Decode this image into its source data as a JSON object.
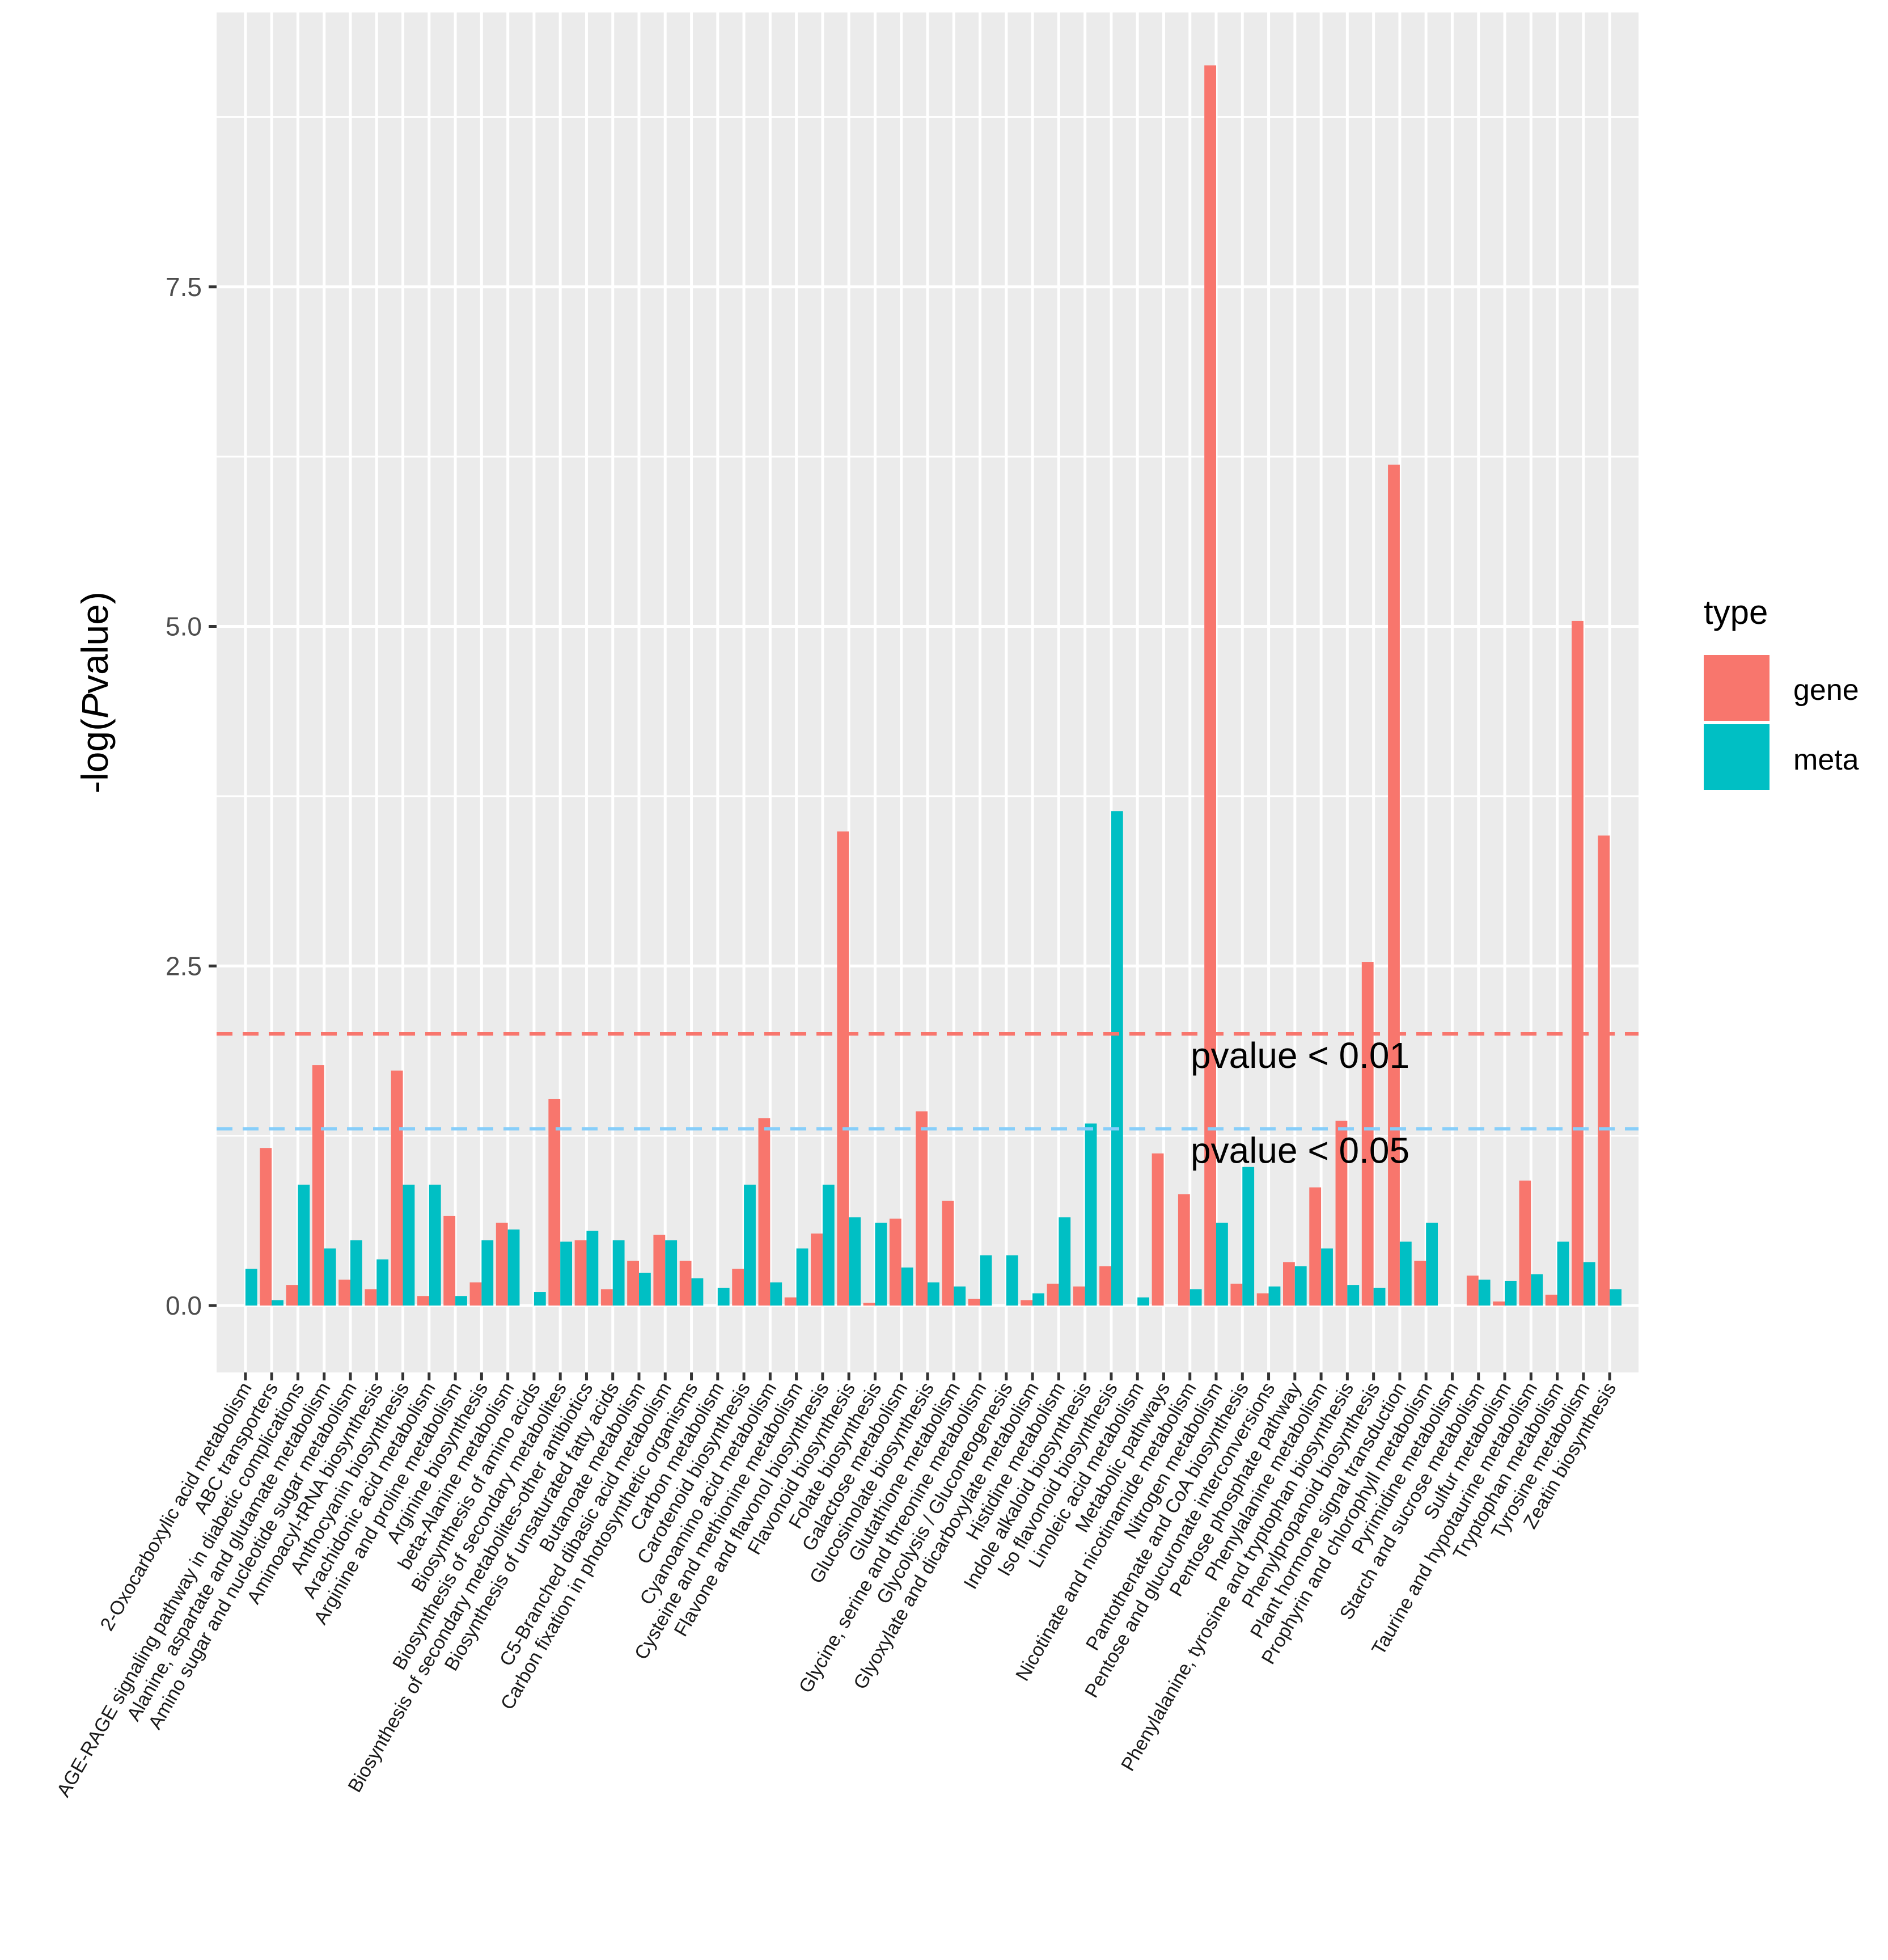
{
  "chart_data": {
    "type": "bar",
    "title": "",
    "xlabel": "",
    "ylabel_prefix": "-log(",
    "ylabel_italic": "P",
    "ylabel_suffix": "value)",
    "ylim": [
      -0.18,
      9.4
    ],
    "yticks": [
      0,
      2.5,
      5,
      7.5
    ],
    "ytick_labels": [
      "0.0",
      "2.5",
      "5.0",
      "7.5"
    ],
    "grid": true,
    "legend": {
      "title": "type",
      "position": "right",
      "entries": [
        {
          "label": "gene",
          "color": "#F8766D"
        },
        {
          "label": "meta",
          "color": "#00BFC4"
        }
      ]
    },
    "categories": [
      "2-Oxocarboxylic acid metabolism",
      "ABC transporters",
      "AGE-RAGE signaling pathway in diabetic complications",
      "Alanine, aspartate and glutamate metabolism",
      "Amino sugar and nucleotide sugar metabolism",
      "Aminoacyl-tRNA biosynthesis",
      "Anthocyanin biosynthesis",
      "Arachidonic acid metabolism",
      "Arginine and proline metabolism",
      "Arginine biosynthesis",
      "beta-Alanine metabolism",
      "Biosynthesis of amino acids",
      "Biosynthesis of secondary metabolites",
      "Biosynthesis of secondary metabolites-other antibiotics",
      "Biosynthesis of unsaturated fatty acids",
      "Butanoate metabolism",
      "C5-Branched dibasic acid metabolism",
      "Carbon fixation in photosynthetic organisms",
      "Carbon metabolism",
      "Carotenoid biosynthesis",
      "Cyanoamino acid metabolism",
      "Cysteine and methionine metabolism",
      "Flavone and flavonol biosynthesis",
      "Flavonoid biosynthesis",
      "Folate biosynthesis",
      "Galactose metabolism",
      "Glucosinolate biosynthesis",
      "Glutathione metabolism",
      "Glycine, serine and threonine metabolism",
      "Glycolysis / Gluconeogenesis",
      "Glyoxylate and dicarboxylate metabolism",
      "Histidine metabolism",
      "Indole alkaloid biosynthesis",
      "Iso flavonoid biosynthesis",
      "Linoleic acid metabolism",
      "Metabolic pathways",
      "Nicotinate and nicotinamide metabolism",
      "Nitrogen metabolism",
      "Pantothenate and CoA biosynthesis",
      "Pentose and glucuronate interconversions",
      "Pentose phosphate pathway",
      "Phenylalanine metabolism",
      "Phenylalanine, tyrosine and tryptophan biosynthesis",
      "Phenylpropanoid biosynthesis",
      "Plant hormone signal transduction",
      "Prophyrin and chlorophyll metabolism",
      "Pyrimidine metabolism",
      "Starch and sucrose metabolism",
      "Sulfur metabolism",
      "Taurine and hypotaurine metabolism",
      "Tryptophan metabolism",
      "Tyrosine metabolism",
      "Zeatin biosynthesis"
    ],
    "series": [
      {
        "name": "gene",
        "color": "#F8766D",
        "values": [
          0,
          1.16,
          0.15,
          1.77,
          0.19,
          0.12,
          1.73,
          0.07,
          0.66,
          0.17,
          0.61,
          0,
          1.52,
          0.48,
          0.12,
          0.33,
          0.52,
          0.33,
          0,
          0.27,
          1.38,
          0.06,
          0.53,
          3.49,
          0.02,
          0.64,
          1.43,
          0.77,
          0.05,
          0,
          0.04,
          0.16,
          0.14,
          0.29,
          0,
          1.12,
          0.82,
          9.13,
          0.16,
          0.09,
          0.32,
          0.87,
          1.36,
          2.53,
          6.19,
          0.33,
          0,
          0.22,
          0.03,
          0.92,
          0.08,
          5.04,
          3.46
        ]
      },
      {
        "name": "meta",
        "color": "#00BFC4",
        "values": [
          0.27,
          0.04,
          0.89,
          0.42,
          0.48,
          0.34,
          0.89,
          0.89,
          0.07,
          0.48,
          0.56,
          0.1,
          0.47,
          0.55,
          0.48,
          0.24,
          0.48,
          0.2,
          0.13,
          0.89,
          0.17,
          0.42,
          0.89,
          0.65,
          0.61,
          0.28,
          0.17,
          0.14,
          0.37,
          0.37,
          0.09,
          0.65,
          1.34,
          3.64,
          0.06,
          0,
          0.12,
          0.61,
          1.02,
          0.14,
          0.29,
          0.42,
          0.15,
          0.13,
          0.47,
          0.61,
          0,
          0.19,
          0.18,
          0.23,
          0.47,
          0.32,
          0.12
        ]
      }
    ],
    "reference_lines": [
      {
        "value": 2.0,
        "color": "#F8766D",
        "style": "dashed",
        "label": "pvalue < 0.01"
      },
      {
        "value": 1.301,
        "color": "#87CEFA",
        "style": "dashed",
        "label": "pvalue < 0.05"
      }
    ]
  }
}
